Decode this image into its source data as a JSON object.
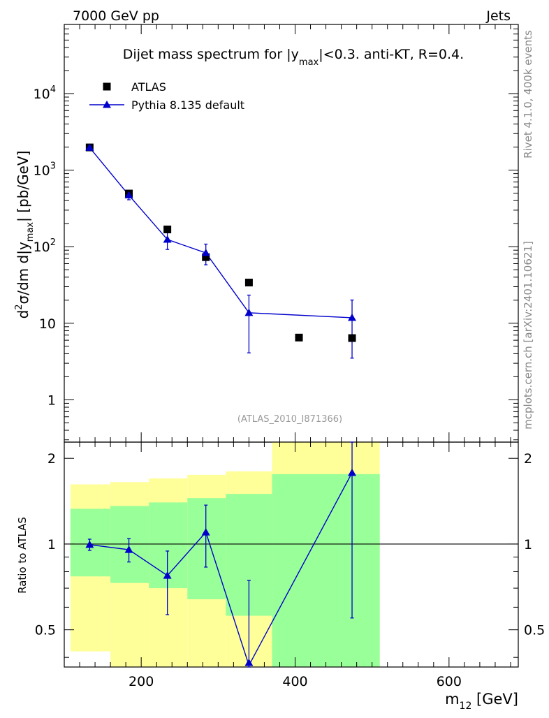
{
  "header": {
    "left": "7000 GeV pp",
    "right": "Jets",
    "side_rivet": "Rivet 4.1.0,  400k events",
    "side_mcplots": "mcplots.cern.ch [arXiv:2401.10621]",
    "analysis_tag": "(ATLAS_2010_I871366)"
  },
  "chart_data": [
    {
      "type": "scatter",
      "title_parts": {
        "pre": "Dijet mass spectrum for |y",
        "sub": "max",
        "post": "|<0.3.  anti-KT, R=0.4."
      },
      "ylabel_parts": {
        "a": "d",
        "sup": "2",
        "b": "σ/dm d|y",
        "sub": "max",
        "c": "| [pb/GeV]"
      },
      "yscale": "log",
      "ylim": [
        0.28,
        80000
      ],
      "xlim": [
        100,
        690
      ],
      "ytick_labels": [
        {
          "value": 1,
          "label": "1"
        },
        {
          "value": 10,
          "label": "10"
        },
        {
          "value": 100,
          "label": "10",
          "sup": "2"
        },
        {
          "value": 1000,
          "label": "10",
          "sup": "3"
        },
        {
          "value": 10000,
          "label": "10",
          "sup": "4"
        }
      ],
      "legend": [
        {
          "name": "ATLAS",
          "marker": "square",
          "color": "#000000"
        },
        {
          "name": "Pythia 8.135 default",
          "marker": "triangle",
          "color": "#0000cc"
        }
      ],
      "series": [
        {
          "name": "ATLAS",
          "x": [
            133,
            184,
            234,
            284,
            340,
            405,
            474
          ],
          "y": [
            1980,
            495,
            168,
            73,
            34,
            6.5,
            6.4
          ],
          "yerr_low": [
            0,
            0,
            0,
            0,
            0,
            0,
            0
          ],
          "yerr_high": [
            0,
            0,
            0,
            0,
            0,
            0,
            0
          ]
        },
        {
          "name": "Pythia 8.135 default",
          "x": [
            133,
            184,
            234,
            284,
            340,
            474
          ],
          "y": [
            1970,
            470,
            124,
            83,
            13.7,
            11.8
          ],
          "yerr_low": [
            110,
            60,
            32,
            25,
            9.6,
            8.3
          ],
          "yerr_high": [
            110,
            60,
            32,
            25,
            9.6,
            8.3
          ]
        }
      ]
    },
    {
      "type": "scatter",
      "ylabel": "Ratio to ATLAS",
      "xlabel_parts": {
        "pre": "m",
        "sub": "12",
        "post": " [GeV]"
      },
      "yscale": "log",
      "ylim": [
        0.37,
        2.28
      ],
      "xlim": [
        100,
        690
      ],
      "xtick_labels": [
        {
          "value": 200,
          "label": "200"
        },
        {
          "value": 400,
          "label": "400"
        },
        {
          "value": 600,
          "label": "600"
        }
      ],
      "ytick_labels": [
        {
          "value": 0.5,
          "label": "0.5"
        },
        {
          "value": 1,
          "label": "1"
        },
        {
          "value": 2,
          "label": "2"
        }
      ],
      "bands": [
        {
          "x0": 108,
          "x1": 160,
          "yellow_lo": 0.42,
          "yellow_hi": 1.62,
          "green_lo": 0.77,
          "green_hi": 1.33
        },
        {
          "x0": 160,
          "x1": 210,
          "yellow_lo": 0.3,
          "yellow_hi": 1.65,
          "green_lo": 0.73,
          "green_hi": 1.36
        },
        {
          "x0": 210,
          "x1": 260,
          "yellow_lo": 0.3,
          "yellow_hi": 1.7,
          "green_lo": 0.7,
          "green_hi": 1.4
        },
        {
          "x0": 260,
          "x1": 310,
          "yellow_lo": 0.3,
          "yellow_hi": 1.75,
          "green_lo": 0.64,
          "green_hi": 1.45
        },
        {
          "x0": 310,
          "x1": 370,
          "yellow_lo": 0.3,
          "yellow_hi": 1.8,
          "green_lo": 0.56,
          "green_hi": 1.5
        },
        {
          "x0": 370,
          "x1": 510,
          "yellow_lo": 0.3,
          "yellow_hi": 2.4,
          "green_lo": 0.3,
          "green_hi": 1.76
        }
      ],
      "series": [
        {
          "name": "Pythia 8.135 default",
          "x": [
            133,
            184,
            234,
            284,
            340,
            474
          ],
          "y": [
            0.995,
            0.955,
            0.775,
            1.1,
            0.375,
            1.78
          ],
          "yerr_low": [
            0.045,
            0.09,
            0.21,
            0.27,
            0.3,
            1.23
          ],
          "yerr_high": [
            0.045,
            0.09,
            0.17,
            0.27,
            0.37,
            1.3
          ]
        }
      ],
      "reference_line": 1
    }
  ],
  "colors": {
    "data": "#000000",
    "mc": "#0000cc",
    "band_yellow": "#ffff99",
    "band_green": "#99ff99",
    "side_text": "#888888"
  }
}
